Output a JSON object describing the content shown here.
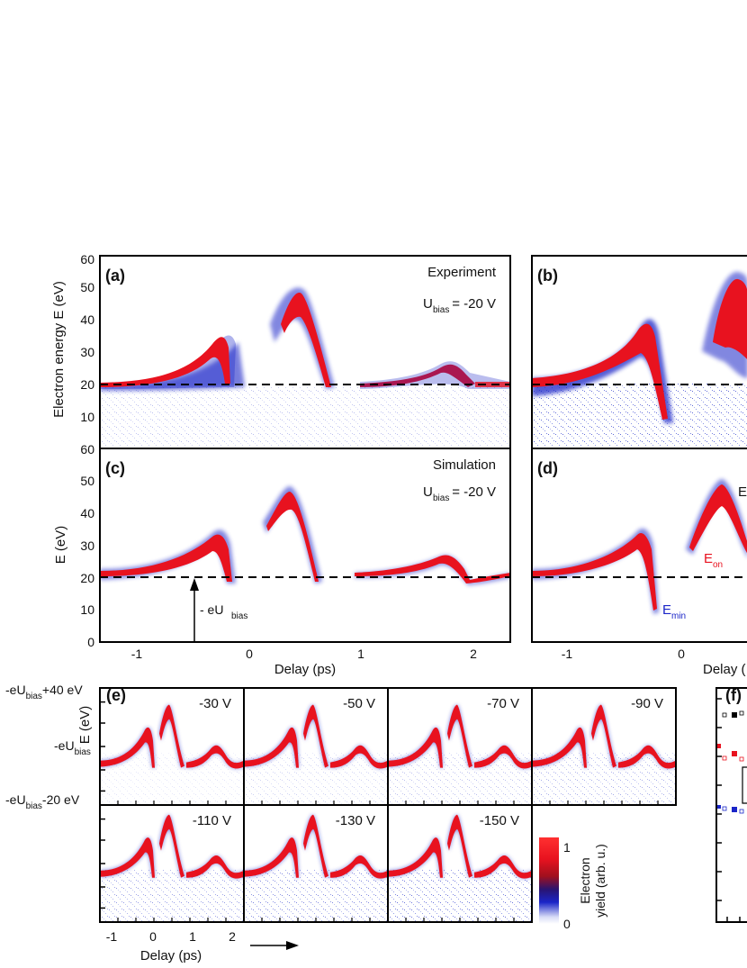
{
  "colors": {
    "trace_core": "#e8121f",
    "trace_edge": "#1a25c8",
    "noise": "#4a5ad8",
    "text": "#111111"
  },
  "colorbar": {
    "label_line1": "Electron",
    "label_line2": "yield (arb. u.)",
    "max": "1",
    "min": "0"
  },
  "shared": {
    "delay_label": "Delay (ps)",
    "delay_label_cut": "Delay ("
  },
  "chart_data": [
    {
      "panel": "(a)",
      "type": "heatmap",
      "ylabel": "Electron energy E (eV)",
      "xlabel": "",
      "annotations": [
        "Experiment",
        "U",
        "bias",
        "= -20 V"
      ],
      "xlim": [
        -1.35,
        2.3
      ],
      "ylim": [
        0,
        60
      ],
      "yticks": [
        "20",
        "30",
        "40",
        "50",
        "60"
      ],
      "bias_line": 20,
      "trace": {
        "x": [
          -1.35,
          -1.0,
          -0.7,
          -0.5,
          -0.35,
          -0.28,
          -0.22,
          -0.2
        ],
        "y": [
          19,
          20,
          22,
          27,
          33,
          31,
          22,
          19
        ]
      }
    },
    {
      "panel": "(b)",
      "type": "heatmap",
      "xlim": [
        -1.35,
        0.5
      ],
      "ylim": [
        0,
        60
      ],
      "bias_line": 20
    },
    {
      "panel": "(c)",
      "type": "heatmap",
      "ylabel": "E (eV)",
      "xlabel": "Delay (ps)",
      "annotations": [
        "Simulation",
        "U",
        "bias",
        "= -20 V",
        "- eU",
        "bias"
      ],
      "xlim": [
        -1.35,
        2.3
      ],
      "ylim": [
        0,
        60
      ],
      "xticks": [
        "-1",
        "0",
        "1",
        "2"
      ],
      "yticks": [
        "0",
        "10",
        "20",
        "30",
        "40",
        "50"
      ],
      "bias_line": 20
    },
    {
      "panel": "(d)",
      "type": "heatmap",
      "annotations": [
        "E",
        "on",
        "E",
        "min",
        "E"
      ],
      "xlim": [
        -1.35,
        0.5
      ],
      "ylim": [
        0,
        60
      ],
      "xticks": [
        "-1",
        "0"
      ],
      "bias_line": 20
    },
    {
      "panel": "(e)",
      "type": "heatmap",
      "ylabel": "E (eV)",
      "xlabel": "Delay (ps)",
      "y_levels": [
        "-eU",
        "bias",
        "+40 eV",
        "-eU",
        "bias",
        "-eU",
        "bias",
        "-20 eV"
      ],
      "xticks": [
        "-1",
        "0",
        "1",
        "2"
      ],
      "series": [
        {
          "name": "-30 V"
        },
        {
          "name": "-50 V"
        },
        {
          "name": "-70 V"
        },
        {
          "name": "-90 V"
        },
        {
          "name": "-110 V"
        },
        {
          "name": "-130 V"
        },
        {
          "name": "-150 V"
        }
      ]
    },
    {
      "panel": "(f)",
      "type": "scatter"
    }
  ]
}
